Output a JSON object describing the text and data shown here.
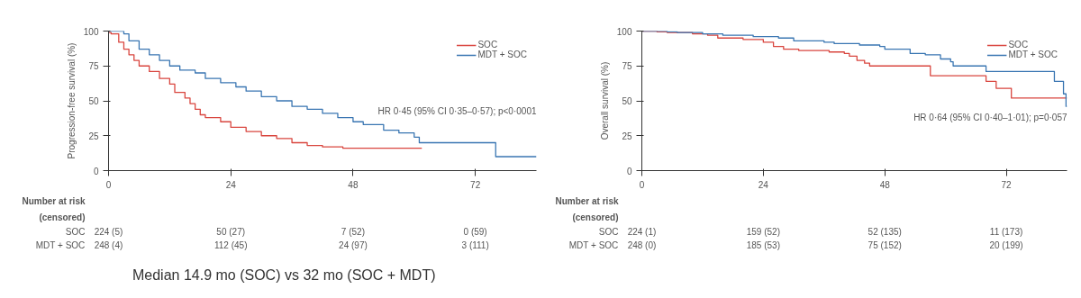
{
  "chart_data": [
    {
      "type": "step",
      "ylabel": "Progression-free survival (%)",
      "xlim": [
        0,
        84
      ],
      "ylim": [
        0,
        100
      ],
      "xticks": [
        0,
        24,
        48,
        72
      ],
      "yticks": [
        0,
        25,
        50,
        75,
        100
      ],
      "grid": false,
      "legend": "top right",
      "line_style": "solid",
      "annotations": [
        "HR 0·45 (95% CI 0·35–0·57); p<0·0001",
        "Number at risk",
        "(censored)",
        "SOC",
        "224 (5)",
        "50 (27)",
        "7 (52)",
        "0 (59)",
        "MDT + SOC",
        "248 (4)",
        "112 (45)",
        "24 (97)",
        "3 (111)",
        "Median 14.9 mo (SOC) vs 32 mo (SOC + MDT)"
      ],
      "series": [
        {
          "name": "SOC",
          "color": "#d9463f",
          "x": [
            0,
            0.5,
            2,
            3,
            4,
            5,
            6,
            8,
            10,
            12,
            13,
            15,
            16,
            17,
            18,
            19,
            22,
            24,
            27,
            30,
            33,
            36,
            39,
            42,
            46,
            61.5
          ],
          "values": [
            99,
            98,
            92,
            87,
            83,
            79,
            75,
            71,
            66,
            62,
            56,
            52,
            48,
            44,
            40,
            38,
            35,
            31,
            28,
            25,
            23,
            20,
            18,
            17,
            16,
            16
          ]
        },
        {
          "name": "MDT + SOC",
          "color": "#3a76b2",
          "x": [
            0,
            3,
            4,
            6,
            8,
            10,
            12,
            14,
            17,
            19,
            22,
            25,
            27,
            30,
            33,
            36,
            39,
            42,
            45,
            48,
            50,
            54,
            57,
            60,
            61,
            76,
            84
          ],
          "values": [
            100,
            98,
            93,
            87,
            83,
            79,
            75,
            72,
            70,
            66,
            63,
            60,
            57,
            53,
            50,
            46,
            44,
            41,
            38,
            35,
            33,
            29,
            27,
            24,
            20,
            10,
            10
          ]
        }
      ]
    },
    {
      "type": "step",
      "ylabel": "Overall survival (%)",
      "xlim": [
        0,
        84
      ],
      "ylim": [
        0,
        100
      ],
      "xticks": [
        0,
        24,
        48,
        72
      ],
      "yticks": [
        0,
        25,
        50,
        75,
        100
      ],
      "grid": false,
      "legend": "top right",
      "line_style": "solid",
      "annotations": [
        "HR 0·64 (95% CI 0·40–1·01); p=0·057",
        "Number at risk",
        "(censored)",
        "SOC",
        "224 (1)",
        "159 (52)",
        "52 (135)",
        "11 (173)",
        "MDT + SOC",
        "248 (0)",
        "185 (53)",
        "75 (152)",
        "20 (199)"
      ],
      "series": [
        {
          "name": "SOC",
          "color": "#d9463f",
          "x": [
            0,
            3,
            5,
            10,
            13,
            15,
            20,
            24,
            26,
            28,
            31,
            37,
            40,
            41,
            42.5,
            44,
            45,
            57,
            68,
            70,
            73,
            84
          ],
          "values": [
            100,
            99.5,
            99,
            98,
            97,
            95,
            94,
            92,
            89,
            87,
            86,
            85,
            84,
            82,
            79,
            77,
            75,
            68,
            64,
            59,
            52,
            52
          ]
        },
        {
          "name": "MDT + SOC",
          "color": "#3a76b2",
          "x": [
            0,
            5,
            7,
            12,
            16,
            22,
            27,
            30,
            36,
            38,
            43,
            47,
            48,
            53,
            56,
            59,
            61,
            61.5,
            68,
            81.5,
            83.3,
            83.8,
            84
          ],
          "values": [
            100,
            99.5,
            99,
            98,
            97,
            96,
            95,
            93,
            92,
            91,
            90,
            89,
            87,
            84,
            83,
            80,
            78,
            75,
            71,
            64,
            55,
            46,
            46
          ]
        }
      ]
    }
  ]
}
